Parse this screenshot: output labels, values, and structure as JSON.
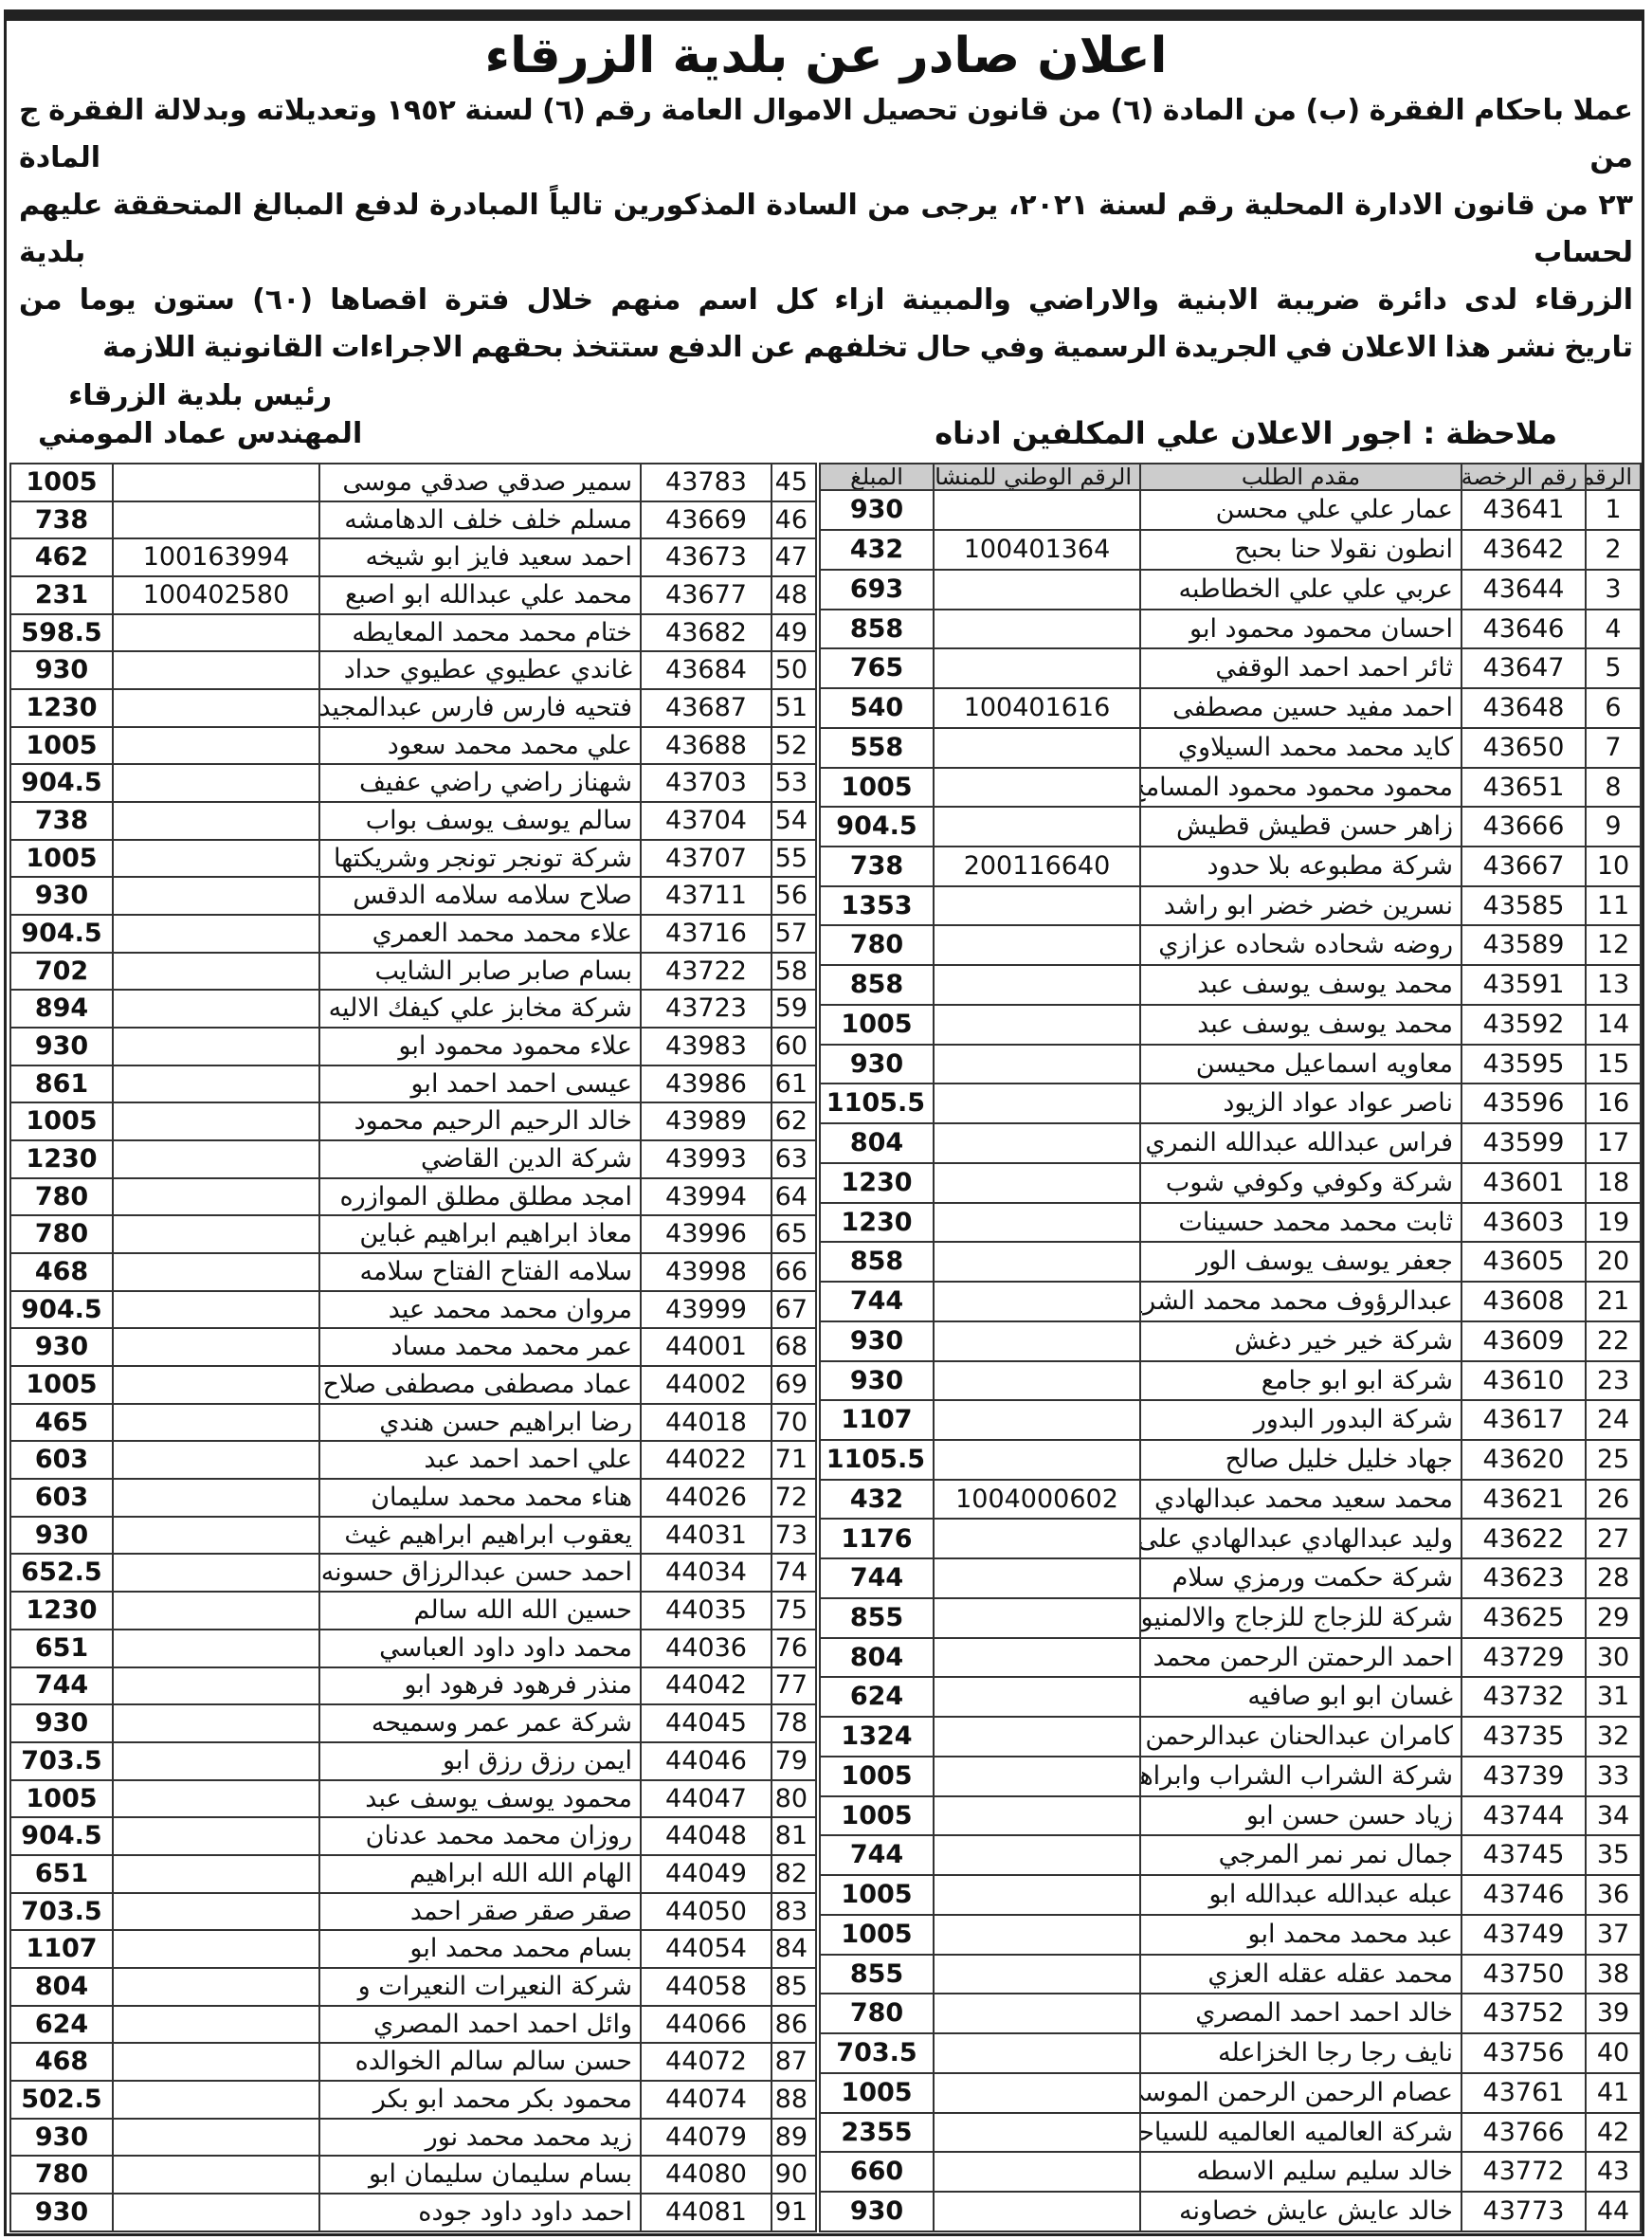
{
  "title": "اعلان صادر عن بلدية الزرقاء",
  "paragraph": [
    "عملا باحكام الفقرة (ب) من المادة (٦) من قانون تحصيل الاموال العامة رقم (٦) لسنة ١٩٥٢ وتعديلاته وبدلالة الفقرة ج من المادة",
    "٢٣ من قانون الادارة المحلية رقم لسنة ٢٠٢١، يرجى من السادة المذكورين تالياً المبادرة لدفع المبالغ المتحققة عليهم لحساب بلدية",
    "الزرقاء لدى دائرة ضريبة الابنية والاراضي والمبينة ازاء كل اسم منهم خلال فترة اقصاها (٦٠) ستون يوما من",
    "تاريخ نشر هذا الاعلان في الجريدة الرسمية وفي حال تخلفهم عن الدفع ستتخذ بحقهم الاجراءات القانونية اللازمة"
  ],
  "signature": {
    "line1": "رئيس بلدية الزرقاء",
    "line2": "المهندس عماد المومني"
  },
  "note": "ملاحظة : اجور الاعلان علي المكلفين ادناه",
  "headers": [
    "الرقم",
    "رقم الرخصة",
    "مقدم الطلب",
    "الرقم الوطني للمنشاه",
    "المبلغ"
  ],
  "rows_right": [
    [
      "1",
      "43641",
      "عمار علي علي محسن",
      "",
      "930"
    ],
    [
      "2",
      "43642",
      "انطون نقولا حنا بحبح",
      "100401364",
      "432"
    ],
    [
      "3",
      "43644",
      "عربي علي علي الخطاطبه",
      "",
      "693"
    ],
    [
      "4",
      "43646",
      "احسان محمود محمود ابو",
      "",
      "858"
    ],
    [
      "5",
      "43647",
      "ثائر احمد احمد الوقفي",
      "",
      "765"
    ],
    [
      "6",
      "43648",
      "احمد مفيد حسين مصطفى",
      "100401616",
      "540"
    ],
    [
      "7",
      "43650",
      "كايد محمد محمد السيلاوي",
      "",
      "558"
    ],
    [
      "8",
      "43651",
      "محمود محمود محمود المسامح",
      "",
      "1005"
    ],
    [
      "9",
      "43666",
      "زاهر حسن قطيش قطيش",
      "",
      "904.5"
    ],
    [
      "10",
      "43667",
      "شركة مطبوعه بلا حدود",
      "200116640",
      "738"
    ],
    [
      "11",
      "43585",
      "نسرين خضر خضر ابو راشد",
      "",
      "1353"
    ],
    [
      "12",
      "43589",
      "روضه شحاده شحاده عزازي",
      "",
      "780"
    ],
    [
      "13",
      "43591",
      "محمد يوسف يوسف عبد",
      "",
      "858"
    ],
    [
      "14",
      "43592",
      "محمد يوسف يوسف عبد",
      "",
      "1005"
    ],
    [
      "15",
      "43595",
      "معاويه اسماعيل محيسن",
      "",
      "930"
    ],
    [
      "16",
      "43596",
      "ناصر عواد عواد الزيود",
      "",
      "1105.5"
    ],
    [
      "17",
      "43599",
      "فراس عبدالله عبدالله النمري",
      "",
      "804"
    ],
    [
      "18",
      "43601",
      "شركة وكوفي وكوفي شوب",
      "",
      "1230"
    ],
    [
      "19",
      "43603",
      "ثابت محمد محمد حسينات",
      "",
      "1230"
    ],
    [
      "20",
      "43605",
      "جعفر يوسف يوسف الور",
      "",
      "858"
    ],
    [
      "21",
      "43608",
      "عبدالرؤوف محمد محمد الشريف",
      "",
      "744"
    ],
    [
      "22",
      "43609",
      "شركة خير خير دغش",
      "",
      "930"
    ],
    [
      "23",
      "43610",
      "شركة ابو ابو جامع",
      "",
      "930"
    ],
    [
      "24",
      "43617",
      "شركة البدور البدور",
      "",
      "1107"
    ],
    [
      "25",
      "43620",
      "جهاد خليل خليل صالح",
      "",
      "1105.5"
    ],
    [
      "26",
      "43621",
      "محمد سعيد محمد عبدالهادي",
      "1004000602",
      "432"
    ],
    [
      "27",
      "43622",
      "وليد عبدالهادي عبدالهادي على",
      "",
      "1176"
    ],
    [
      "28",
      "43623",
      "شركة حكمت ورمزي سلام",
      "",
      "744"
    ],
    [
      "29",
      "43625",
      "شركة للزجاج للزجاج والالمنيوم",
      "",
      "855"
    ],
    [
      "30",
      "43729",
      "احمد الرحمتن الرحمن محمد",
      "",
      "804"
    ],
    [
      "31",
      "43732",
      "غسان ابو ابو صافيه",
      "",
      "624"
    ],
    [
      "32",
      "43735",
      "كامران عبدالحنان عبدالرحمن مغل",
      "",
      "1324"
    ],
    [
      "33",
      "43739",
      "شركة الشراب الشراب وابراهيم",
      "",
      "1005"
    ],
    [
      "34",
      "43744",
      "زياد حسن حسن ابو",
      "",
      "1005"
    ],
    [
      "35",
      "43745",
      "جمال نمر نمر المرجي",
      "",
      "744"
    ],
    [
      "36",
      "43746",
      "عبله عبدالله عبدالله ابو",
      "",
      "1005"
    ],
    [
      "37",
      "43749",
      "عبد محمد محمد ابو",
      "",
      "1005"
    ],
    [
      "38",
      "43750",
      "محمد عقله عقله العزي",
      "",
      "855"
    ],
    [
      "39",
      "43752",
      "خالد احمد احمد المصري",
      "",
      "780"
    ],
    [
      "40",
      "43756",
      "نايف رجا رجا الخزاعله",
      "",
      "703.5"
    ],
    [
      "41",
      "43761",
      "عصام الرحمن الرحمن الموسى",
      "",
      "1005"
    ],
    [
      "42",
      "43766",
      "شركة العالميه العالميه للسياحه",
      "",
      "2355"
    ],
    [
      "43",
      "43772",
      "خالد سليم سليم الاسطه",
      "",
      "660"
    ],
    [
      "44",
      "43773",
      "خالد عايش عايش خصاونه",
      "",
      "930"
    ]
  ],
  "rows_left": [
    [
      "45",
      "43783",
      "سمير صدقي صدقي موسى",
      "",
      "1005"
    ],
    [
      "46",
      "43669",
      "مسلم خلف خلف الدهامشه",
      "",
      "738"
    ],
    [
      "47",
      "43673",
      "احمد سعيد فايز ابو شيخه",
      "100163994",
      "462"
    ],
    [
      "48",
      "43677",
      "محمد علي عبدالله ابو اصبع",
      "100402580",
      "231"
    ],
    [
      "49",
      "43682",
      "ختام محمد محمد المعايطه",
      "",
      "598.5"
    ],
    [
      "50",
      "43684",
      "غاندي عطيوي عطيوي حداد",
      "",
      "930"
    ],
    [
      "51",
      "43687",
      "فتحيه فارس فارس عبدالمجيد",
      "",
      "1230"
    ],
    [
      "52",
      "43688",
      "علي محمد محمد سعود",
      "",
      "1005"
    ],
    [
      "53",
      "43703",
      "شهناز راضي راضي عفيف",
      "",
      "904.5"
    ],
    [
      "54",
      "43704",
      "سالم يوسف يوسف بواب",
      "",
      "738"
    ],
    [
      "55",
      "43707",
      "شركة تونجر تونجر وشريكتها",
      "",
      "1005"
    ],
    [
      "56",
      "43711",
      "صلاح سلامه سلامه الدقس",
      "",
      "930"
    ],
    [
      "57",
      "43716",
      "علاء محمد محمد العمري",
      "",
      "904.5"
    ],
    [
      "58",
      "43722",
      "بسام صابر صابر الشايب",
      "",
      "702"
    ],
    [
      "59",
      "43723",
      "شركة مخابز علي كيفك الاليه",
      "",
      "894"
    ],
    [
      "60",
      "43983",
      "علاء محمود محمود ابو",
      "",
      "930"
    ],
    [
      "61",
      "43986",
      "عيسى احمد احمد ابو",
      "",
      "861"
    ],
    [
      "62",
      "43989",
      "خالد الرحيم الرحيم محمود",
      "",
      "1005"
    ],
    [
      "63",
      "43993",
      "شركة الدين القاضي",
      "",
      "1230"
    ],
    [
      "64",
      "43994",
      "امجد مطلق مطلق الموازره",
      "",
      "780"
    ],
    [
      "65",
      "43996",
      "معاذ ابراهيم ابراهيم غباين",
      "",
      "780"
    ],
    [
      "66",
      "43998",
      "سلامه الفتاح الفتاح سلامه",
      "",
      "468"
    ],
    [
      "67",
      "43999",
      "مروان محمد محمد عيد",
      "",
      "904.5"
    ],
    [
      "68",
      "44001",
      "عمر محمد محمد مساد",
      "",
      "930"
    ],
    [
      "69",
      "44002",
      "عماد مصطفى مصطفى صلاح",
      "",
      "1005"
    ],
    [
      "70",
      "44018",
      "رضا ابراهيم حسن هندي",
      "",
      "465"
    ],
    [
      "71",
      "44022",
      "علي احمد احمد عبد",
      "",
      "603"
    ],
    [
      "72",
      "44026",
      "هناء محمد محمد سليمان",
      "",
      "603"
    ],
    [
      "73",
      "44031",
      "يعقوب ابراهيم ابراهيم غيث",
      "",
      "930"
    ],
    [
      "74",
      "44034",
      "احمد حسن عبدالرزاق حسونه",
      "",
      "652.5"
    ],
    [
      "75",
      "44035",
      "حسين الله الله سالم",
      "",
      "1230"
    ],
    [
      "76",
      "44036",
      "محمد داود داود العباسي",
      "",
      "651"
    ],
    [
      "77",
      "44042",
      "منذر فرهود فرهود ابو",
      "",
      "744"
    ],
    [
      "78",
      "44045",
      "شركة عمر عمر وسميحه",
      "",
      "930"
    ],
    [
      "79",
      "44046",
      "ايمن رزق رزق ابو",
      "",
      "703.5"
    ],
    [
      "80",
      "44047",
      "محمود يوسف يوسف عبد",
      "",
      "1005"
    ],
    [
      "81",
      "44048",
      "روزان محمد محمد عدنان",
      "",
      "904.5"
    ],
    [
      "82",
      "44049",
      "الهام الله الله ابراهيم",
      "",
      "651"
    ],
    [
      "83",
      "44050",
      "صقر صقر صقر احمد",
      "",
      "703.5"
    ],
    [
      "84",
      "44054",
      "بسام محمد محمد ابو",
      "",
      "1107"
    ],
    [
      "85",
      "44058",
      "شركة النعيرات النعيرات و",
      "",
      "804"
    ],
    [
      "86",
      "44066",
      "وائل احمد احمد المصري",
      "",
      "624"
    ],
    [
      "87",
      "44072",
      "حسن سالم سالم الخوالده",
      "",
      "468"
    ],
    [
      "88",
      "44074",
      "محمود بكر محمد ابو بكر",
      "",
      "502.5"
    ],
    [
      "89",
      "44079",
      "زيد محمد محمد نور",
      "",
      "930"
    ],
    [
      "90",
      "44080",
      "بسام سليمان سليمان ابو",
      "",
      "780"
    ],
    [
      "91",
      "44081",
      "احمد داود داود جوده",
      "",
      "930"
    ]
  ]
}
